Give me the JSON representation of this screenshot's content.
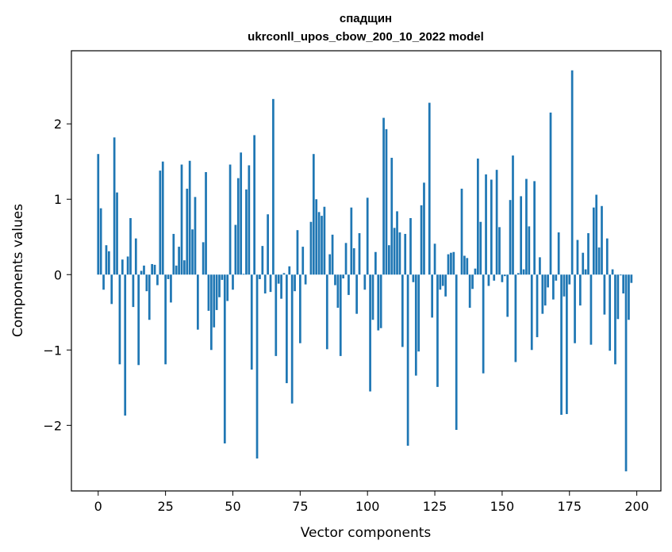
{
  "chart_data": {
    "type": "bar",
    "title": [
      "спадщин",
      "ukrconll_upos_cbow_200_10_2022 model"
    ],
    "xlabel": "Vector components",
    "ylabel": "Components values",
    "xlim": [
      -9.95,
      208.95
    ],
    "ylim": [
      -2.87,
      2.97
    ],
    "xticks": [
      0,
      25,
      50,
      75,
      100,
      125,
      150,
      175,
      200
    ],
    "yticks": [
      -2,
      -1,
      0,
      1,
      2
    ],
    "ytick_labels": [
      "−2",
      "−1",
      "0",
      "1",
      "2"
    ],
    "grid": false,
    "bar_color": "#1f77b4",
    "values": [
      1.6,
      0.88,
      -0.2,
      0.39,
      0.31,
      -0.39,
      1.82,
      1.09,
      -1.19,
      0.2,
      -1.87,
      0.24,
      0.75,
      -0.43,
      0.48,
      -1.2,
      0.05,
      0.12,
      -0.22,
      -0.6,
      0.14,
      0.13,
      -0.14,
      1.38,
      1.5,
      -1.19,
      -0.06,
      -0.37,
      0.54,
      0.12,
      0.37,
      1.46,
      0.19,
      1.14,
      1.51,
      0.6,
      1.03,
      -0.73,
      0.0,
      0.43,
      1.36,
      -0.48,
      -1.0,
      -0.7,
      -0.47,
      -0.3,
      -0.07,
      -2.24,
      -0.35,
      1.46,
      -0.2,
      0.66,
      1.28,
      1.62,
      0.01,
      1.13,
      1.45,
      -1.26,
      1.85,
      -2.44,
      -0.06,
      0.38,
      -0.25,
      0.8,
      -0.23,
      2.33,
      -1.08,
      -0.12,
      -0.32,
      0.02,
      -1.44,
      0.11,
      -1.71,
      -0.22,
      0.59,
      -0.91,
      0.37,
      -0.13,
      0.0,
      0.7,
      1.6,
      1.0,
      0.83,
      0.78,
      0.9,
      -0.99,
      0.27,
      0.53,
      -0.14,
      -0.44,
      -1.08,
      -0.05,
      0.42,
      -0.27,
      0.89,
      0.35,
      -0.52,
      0.55,
      0.0,
      -0.2,
      1.02,
      -1.55,
      -0.6,
      0.3,
      -0.74,
      -0.71,
      2.08,
      1.93,
      0.39,
      1.55,
      0.62,
      0.84,
      0.56,
      -0.96,
      0.54,
      -2.27,
      0.75,
      -0.1,
      -1.34,
      -1.02,
      0.92,
      1.22,
      0.0,
      2.28,
      -0.57,
      0.41,
      -1.49,
      -0.2,
      -0.15,
      -0.29,
      0.27,
      0.29,
      0.3,
      -2.06,
      0.0,
      1.14,
      0.25,
      0.22,
      -0.44,
      -0.19,
      0.08,
      1.54,
      0.7,
      -1.31,
      1.33,
      -0.15,
      1.26,
      -0.08,
      1.39,
      0.63,
      -0.1,
      -0.02,
      -0.56,
      0.99,
      1.58,
      -1.16,
      0.02,
      1.04,
      0.07,
      1.27,
      0.64,
      -1.0,
      1.24,
      -0.83,
      0.23,
      -0.52,
      -0.41,
      -0.17,
      2.15,
      -0.33,
      -0.08,
      0.56,
      -1.86,
      -0.29,
      -1.85,
      -0.13,
      2.71,
      -0.91,
      0.46,
      -0.41,
      0.29,
      0.07,
      0.55,
      -0.93,
      0.89,
      1.06,
      0.36,
      0.91,
      -0.53,
      0.48,
      -1.01,
      0.07,
      -1.19,
      -0.59,
      -0.01,
      -0.25,
      -2.61,
      -0.6,
      -0.11
    ]
  }
}
